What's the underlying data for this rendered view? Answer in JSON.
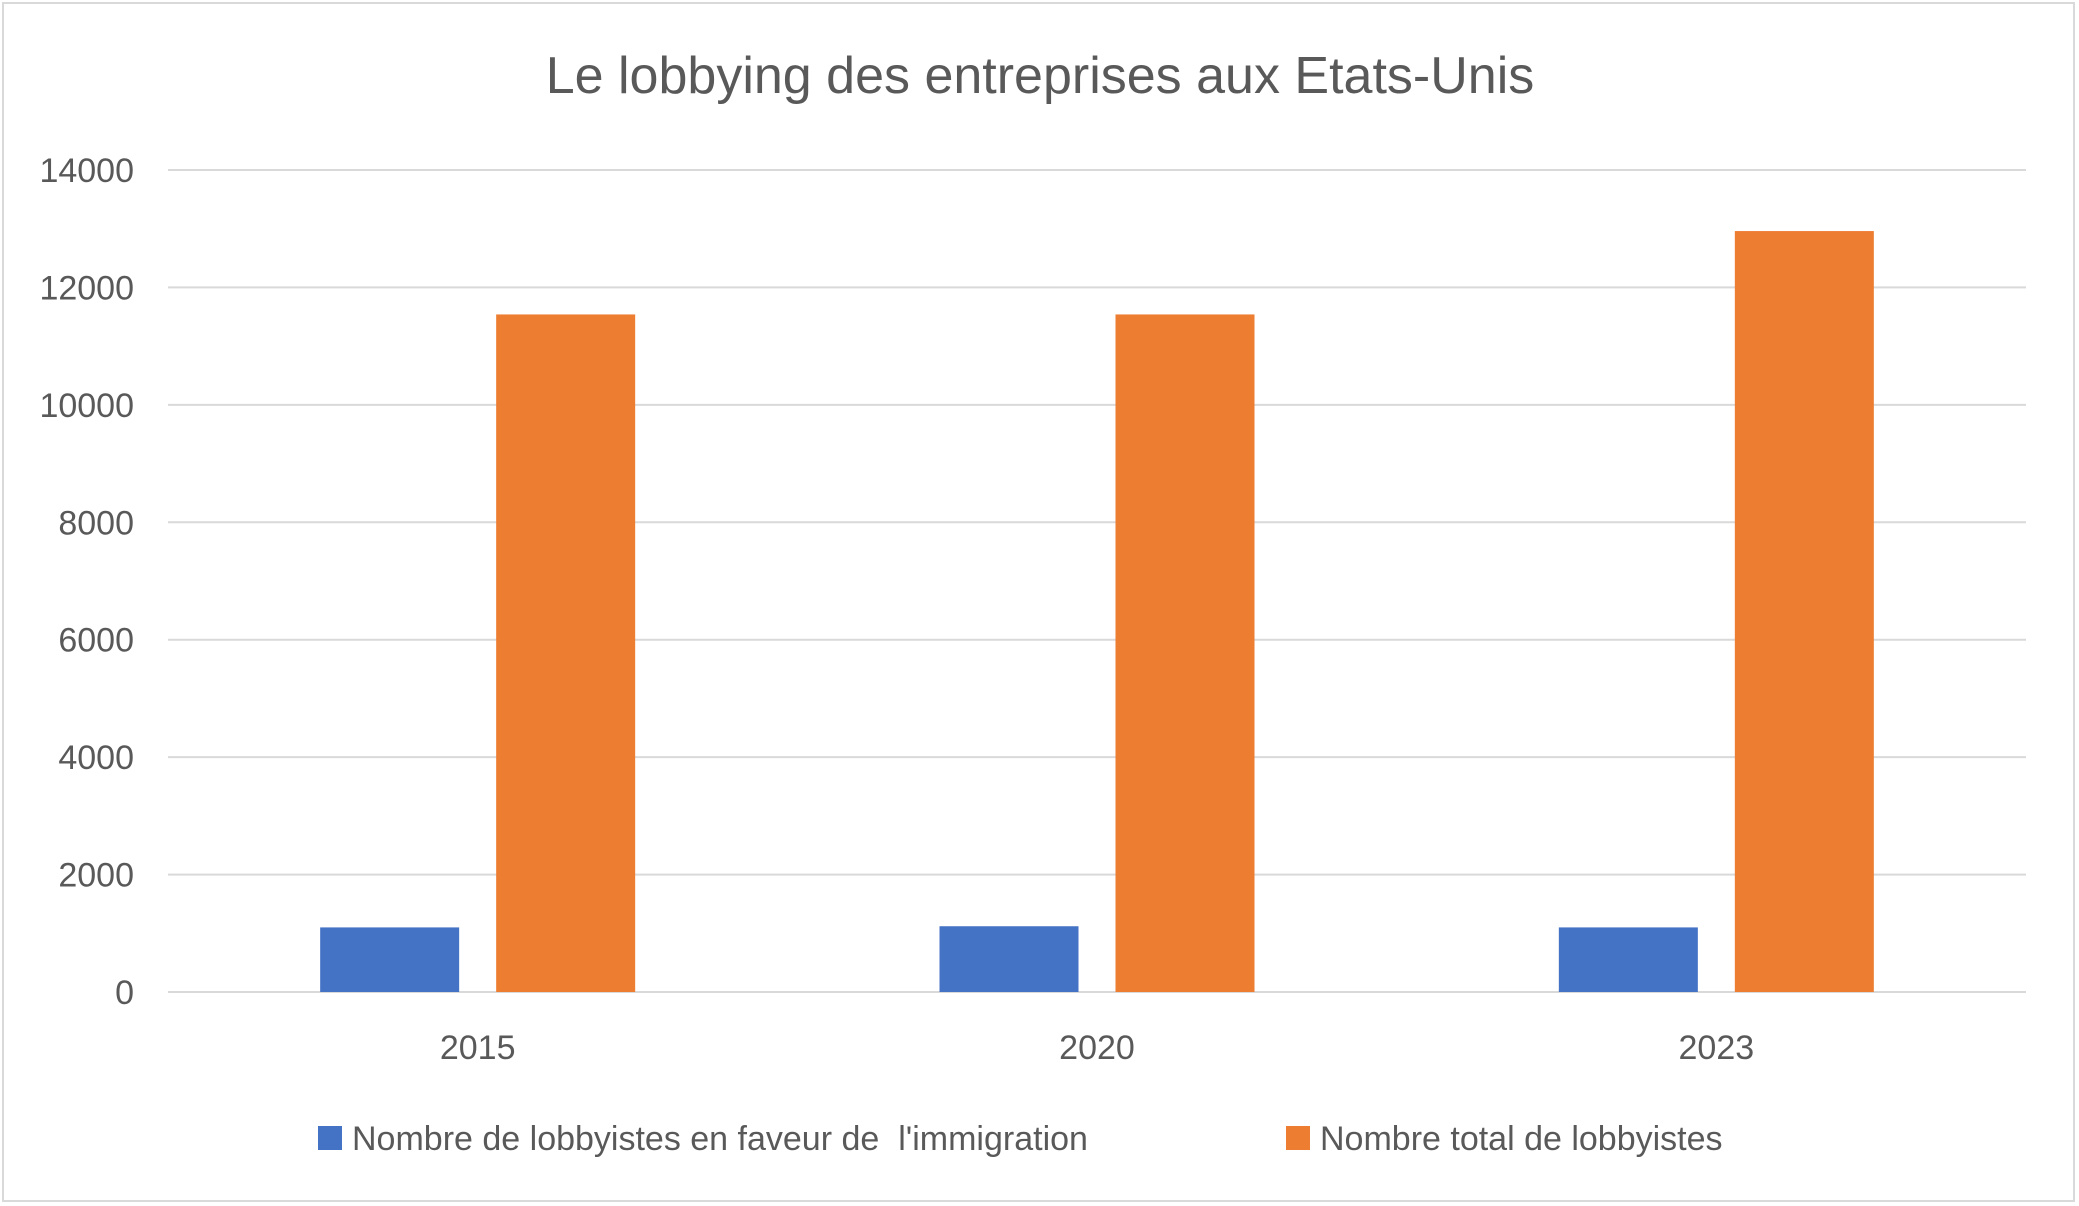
{
  "chart_data": {
    "type": "bar",
    "title": "Le lobbying des entreprises aux Etats-Unis",
    "xlabel": "",
    "ylabel": "",
    "categories": [
      "2015",
      "2020",
      "2023"
    ],
    "series": [
      {
        "name": "Nombre de lobbyistes en faveur de  l'immigration",
        "values": [
          1100,
          1120,
          1100
        ],
        "color": "#4472c4"
      },
      {
        "name": "Nombre total de lobbyistes",
        "values": [
          11540,
          11540,
          12960
        ],
        "color": "#ed7d31"
      }
    ],
    "ylim": [
      0,
      14000
    ],
    "yticks": [
      "0",
      "2000",
      "4000",
      "6000",
      "8000",
      "10000",
      "12000",
      "14000"
    ],
    "grid": true,
    "legend_position": "bottom"
  },
  "colors": {
    "gridline": "#d9d9d9",
    "text": "#595959"
  }
}
